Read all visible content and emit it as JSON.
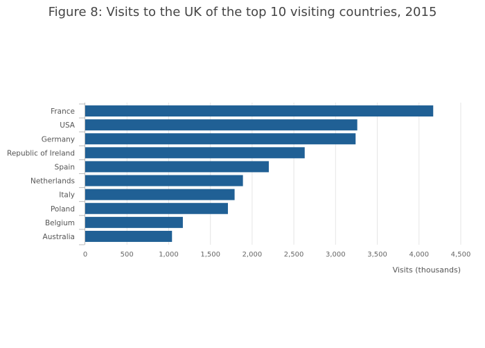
{
  "colors": {
    "bar": "#206095",
    "grid": "#e5e5e5",
    "axis": "#bbbbbb"
  },
  "chart_data": {
    "type": "bar",
    "orientation": "horizontal",
    "title": "Figure 8: Visits to the UK of the top 10 visiting countries, 2015",
    "xlabel": "Visits (thousands)",
    "ylabel": "",
    "categories": [
      "France",
      "USA",
      "Germany",
      "Republic of Ireland",
      "Spain",
      "Netherlands",
      "Italy",
      "Poland",
      "Belgium",
      "Australia"
    ],
    "values": [
      4170,
      3260,
      3240,
      2630,
      2200,
      1890,
      1790,
      1710,
      1170,
      1040
    ],
    "xlim": [
      0,
      4500
    ],
    "xticks": [
      0,
      500,
      1000,
      1500,
      2000,
      2500,
      3000,
      3500,
      4000,
      4500
    ],
    "xtick_labels": [
      "0",
      "500",
      "1,000",
      "1,500",
      "2,000",
      "2,500",
      "3,000",
      "3,500",
      "4,000",
      "4,500"
    ],
    "grid": true,
    "legend": "none"
  }
}
